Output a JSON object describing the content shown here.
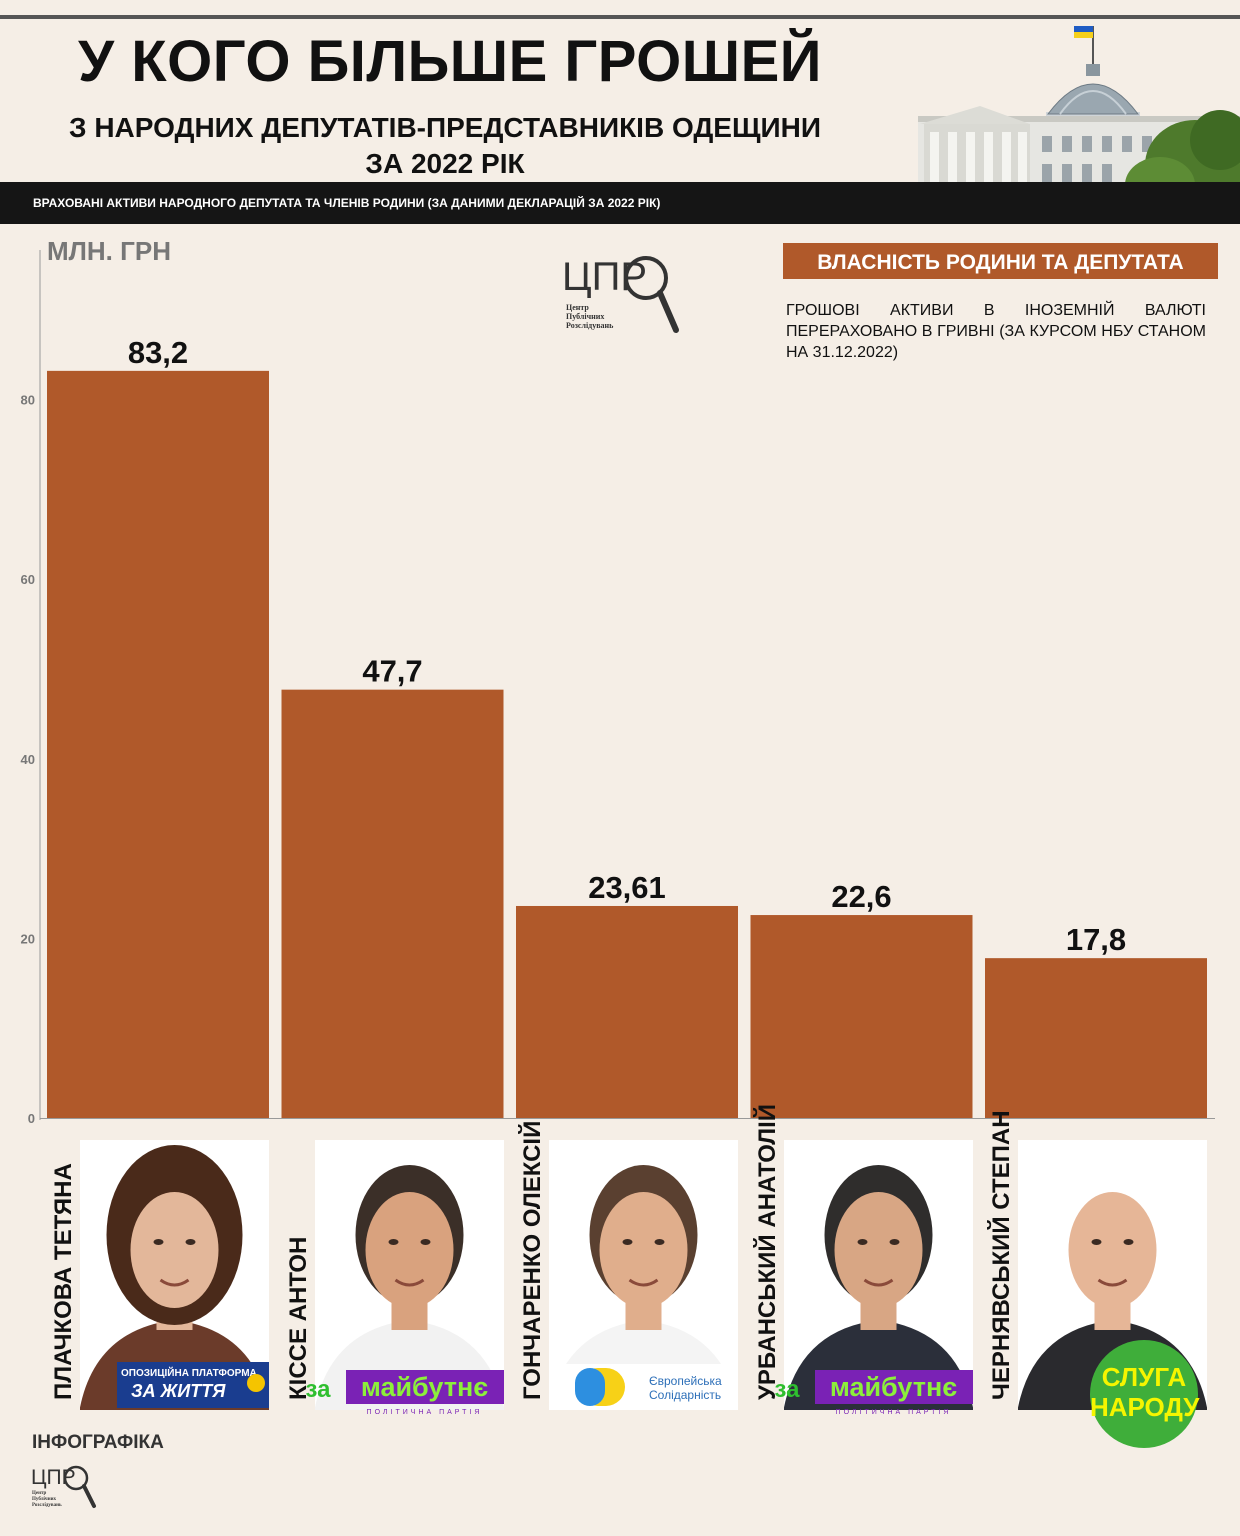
{
  "header": {
    "title": "У КОГО БІЛЬШЕ ГРОШЕЙ",
    "subtitle_line1": "З НАРОДНИХ ДЕПУТАТІВ-ПРЕДСТАВНИКІВ ОДЕЩИНИ",
    "subtitle_line2": "ЗА 2022 РІК",
    "banner": "ВРАХОВАНІ АКТИВИ НАРОДНОГО ДЕПУТАТА ТА ЧЛЕНІВ РОДИНИ  (ЗА ДАНИМИ ДЕКЛАРАЦІЙ ЗА 2022 РІК)"
  },
  "logo": {
    "letters": "ЦПР",
    "line1": "Центр",
    "line2": "Публічних",
    "line3": "Розслідувань"
  },
  "legend": {
    "label": "ВЛАСНІСТЬ РОДИНИ ТА ДЕПУТАТА",
    "color": "#b0592a"
  },
  "note": "ГРОШОВІ АКТИВИ В ІНОЗЕМНІЙ ВАЛЮТІ ПЕРЕРАХОВАНО В ГРИВНІ (ЗА КУРСОМ НБУ СТАНОМ НА 31.12.2022)",
  "chart_data": {
    "type": "bar",
    "title": "У КОГО БІЛЬШЕ ГРОШЕЙ",
    "ylabel": "МЛН. ГРН",
    "xlabel": "",
    "categories": [
      "ПЛАЧКОВА ТЕТЯНА",
      "КІССЕ АНТОН",
      "ГОНЧАРЕНКО ОЛЕКСІЙ",
      "УРБАНСЬКИЙ АНАТОЛІЙ",
      "ЧЕРНЯВСЬКИЙ СТЕПАН"
    ],
    "values": [
      83.2,
      47.7,
      23.61,
      22.6,
      17.8
    ],
    "value_labels": [
      "83,2",
      "47,7",
      "23,61",
      "22,6",
      "17,8"
    ],
    "series": [
      {
        "name": "ВЛАСНІСТЬ РОДИНИ ТА ДЕПУТАТА",
        "values": [
          83.2,
          47.7,
          23.61,
          22.6,
          17.8
        ]
      }
    ],
    "yticks": [
      "0",
      "20",
      "40",
      "60",
      "80"
    ],
    "ylim": [
      0,
      100
    ],
    "grid": false,
    "legend": "top-right",
    "bar_color": "#b0592a"
  },
  "people": [
    {
      "name": "ПЛАЧКОВА ТЕТЯНА",
      "party_line1": "ОПОЗИЦІЙНА ПЛАТФОРМА",
      "party_line2": "ЗА ЖИТТЯ"
    },
    {
      "name": "КІССЕ АНТОН",
      "party_line1": "за",
      "party_line2": "майбутнє",
      "party_line3": "ПОЛІТИЧНА ПАРТІЯ"
    },
    {
      "name": "ГОНЧАРЕНКО ОЛЕКСІЙ",
      "party_line1": "Європейська",
      "party_line2": "Солідарність"
    },
    {
      "name": "УРБАНСЬКИЙ АНАТОЛІЙ",
      "party_line1": "за",
      "party_line2": "майбутнє",
      "party_line3": "ПОЛІТИЧНА ПАРТІЯ"
    },
    {
      "name": "ЧЕРНЯВСЬКИЙ СТЕПАН",
      "party_line1": "СЛУГА",
      "party_line2": "НАРОДУ"
    }
  ],
  "footer": {
    "label": "ІНФОГРАФІКА"
  }
}
